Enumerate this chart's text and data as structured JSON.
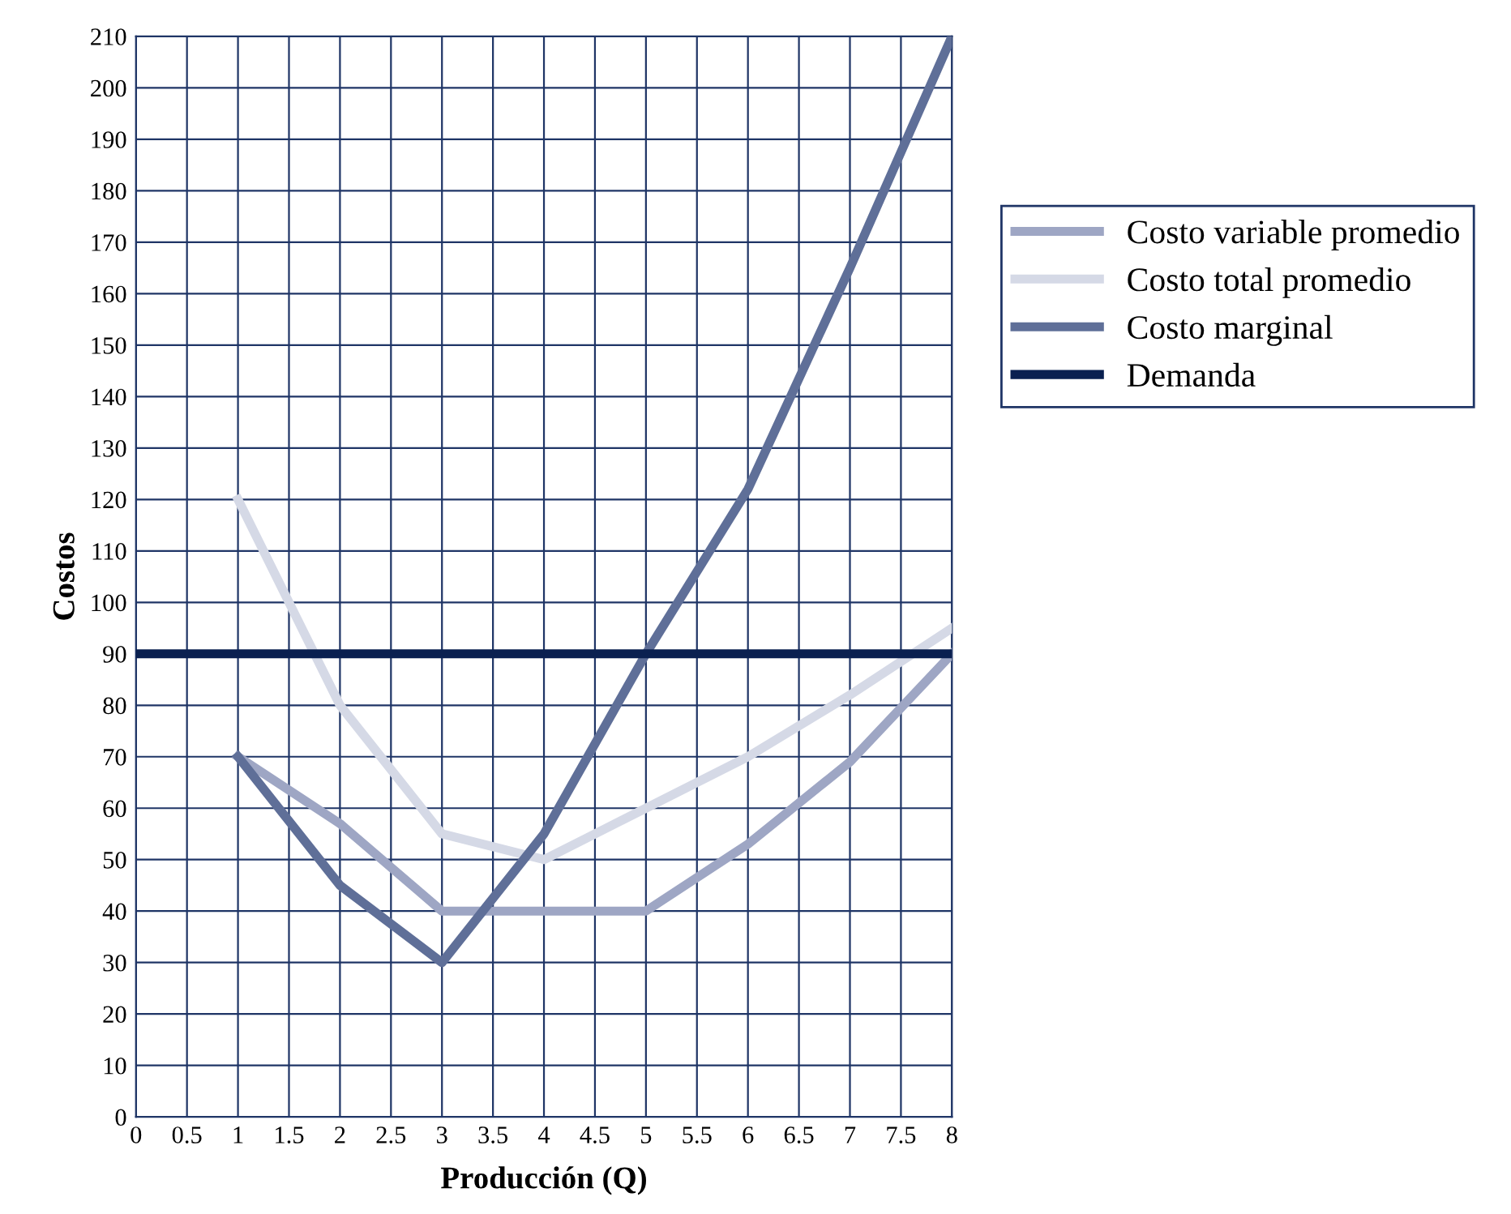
{
  "chart_data": {
    "type": "line",
    "xlabel": "Producción (Q)",
    "ylabel": "Costos",
    "xlim": [
      0,
      8
    ],
    "ylim": [
      0,
      210
    ],
    "xticks": [
      0,
      0.5,
      1,
      1.5,
      2,
      2.5,
      3,
      3.5,
      4,
      4.5,
      5,
      5.5,
      6,
      6.5,
      7,
      7.5,
      8
    ],
    "yticks": [
      0,
      10,
      20,
      30,
      40,
      50,
      60,
      70,
      80,
      90,
      100,
      110,
      120,
      130,
      140,
      150,
      160,
      170,
      180,
      190,
      200,
      210
    ],
    "series": [
      {
        "name": "Costo variable promedio",
        "color": "#9ea6c4",
        "x": [
          1,
          2,
          3,
          4,
          5,
          6,
          7,
          8
        ],
        "values": [
          70,
          57,
          40,
          40,
          40,
          53,
          69,
          90
        ]
      },
      {
        "name": "Costo total promedio",
        "color": "#d5d9e6",
        "x": [
          1,
          2,
          3,
          4,
          5,
          6,
          7,
          8
        ],
        "values": [
          120,
          80,
          55,
          50,
          60,
          70,
          82,
          95
        ]
      },
      {
        "name": "Costo marginal",
        "color": "#5f6f98",
        "x": [
          1,
          2,
          3,
          4,
          5,
          6,
          7,
          8
        ],
        "values": [
          70,
          45,
          30,
          55,
          90,
          122,
          165,
          210
        ]
      },
      {
        "name": "Demanda",
        "color": "#0a2050",
        "x": [
          0,
          8
        ],
        "values": [
          90,
          90
        ]
      }
    ],
    "grid": true,
    "legend": "right",
    "marker": "none",
    "line_style": "solid"
  }
}
